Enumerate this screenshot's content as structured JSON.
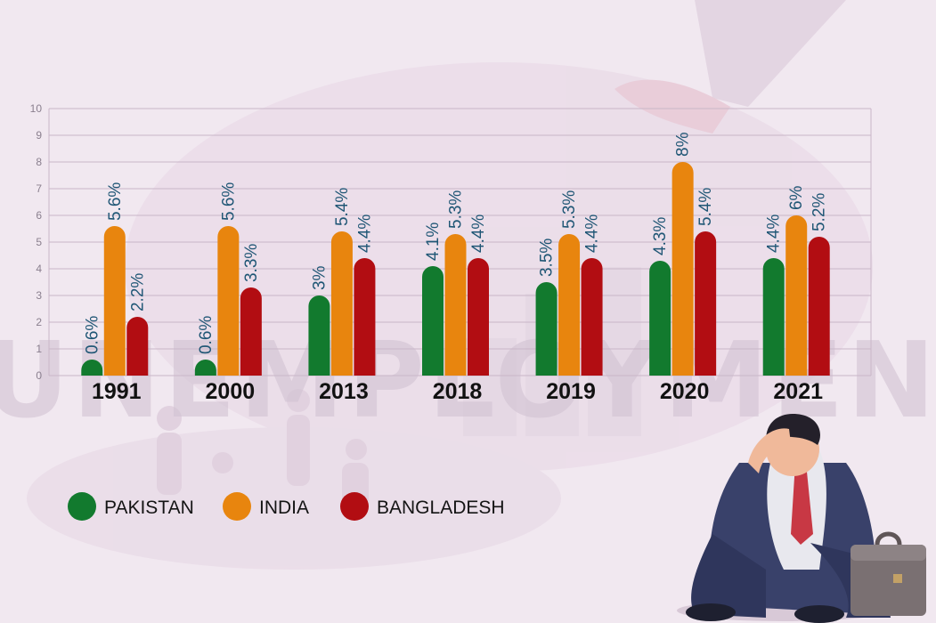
{
  "colors": {
    "pakistan": "#127a2e",
    "india": "#e8850e",
    "bangladesh": "#b20d12",
    "label": "#1f5675",
    "grid": "#c9b6c8",
    "axis_text": "#8a7f8e",
    "background": "#f1e8f0"
  },
  "chart_data": {
    "type": "bar",
    "categories": [
      "1991",
      "2000",
      "2013",
      "2018",
      "2019",
      "2020",
      "2021"
    ],
    "series": [
      {
        "name": "PAKISTAN",
        "values": [
          0.6,
          0.6,
          3,
          4.1,
          3.5,
          4.3,
          4.4
        ],
        "labels": [
          "0.6%",
          "0.6%",
          "3%",
          "4.1%",
          "3.5%",
          "4.3%",
          "4.4%"
        ]
      },
      {
        "name": "INDIA",
        "values": [
          5.6,
          5.6,
          5.4,
          5.3,
          5.3,
          8,
          6
        ],
        "labels": [
          "5.6%",
          "5.6%",
          "5.4%",
          "5.3%",
          "5.3%",
          "8%",
          "6%"
        ]
      },
      {
        "name": "BANGLADESH",
        "values": [
          2.2,
          3.3,
          4.4,
          4.4,
          4.4,
          5.4,
          5.2
        ],
        "labels": [
          "2.2%",
          "3.3%",
          "4.4%",
          "4.4%",
          "4.4%",
          "5.4%",
          "5.2%"
        ]
      }
    ],
    "ylim": [
      0,
      10
    ],
    "yticks": [
      "0",
      "1",
      "2",
      "3",
      "4",
      "5",
      "6",
      "7",
      "8",
      "9",
      "10"
    ],
    "grid": true,
    "legend_position": "bottom-left"
  },
  "background_text": "UNEMPLOYMENT"
}
